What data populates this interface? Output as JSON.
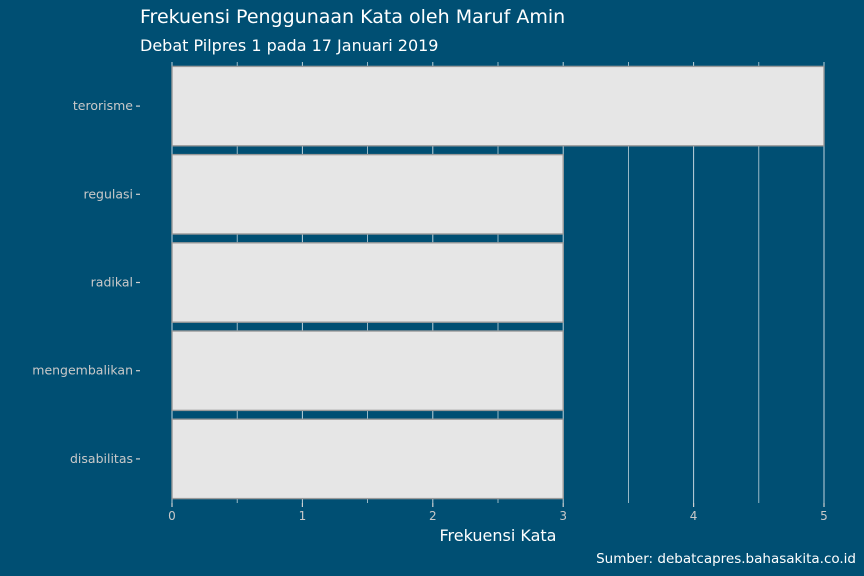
{
  "chart_data": {
    "type": "bar",
    "orientation": "horizontal",
    "title": "Frekuensi Penggunaan Kata oleh Maruf Amin",
    "subtitle": "Debat Pilpres 1 pada 17 Januari 2019",
    "xlabel": "Frekuensi Kata",
    "ylabel": "",
    "caption": "Sumber: debatcapres.bahasakita.co.id",
    "categories": [
      "terorisme",
      "regulasi",
      "radikal",
      "mengembalikan",
      "disabilitas"
    ],
    "values": [
      5,
      3,
      3,
      3,
      3
    ],
    "xlim": [
      0,
      5
    ],
    "xticks": [
      "0",
      "1",
      "2",
      "3",
      "4",
      "5"
    ],
    "grid": true,
    "colors": {
      "background": "#004f73",
      "bar_fill": "#e6e6e6",
      "bar_border": "#9a9a9a"
    }
  }
}
